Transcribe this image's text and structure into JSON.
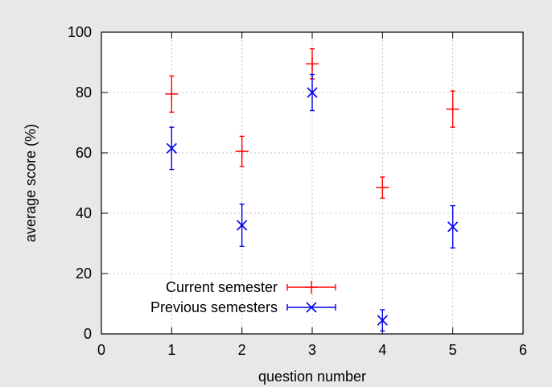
{
  "chart_data": {
    "type": "scatter",
    "xlabel": "question number",
    "ylabel": "average score (%)",
    "xlim": [
      0,
      6
    ],
    "ylim": [
      0,
      100
    ],
    "xticks": [
      0,
      1,
      2,
      3,
      4,
      5,
      6
    ],
    "yticks": [
      0,
      20,
      40,
      60,
      80,
      100
    ],
    "grid": true,
    "legend_position": "bottom-left",
    "series": [
      {
        "name": "Current semester",
        "marker": "plus",
        "color": "#ff0000",
        "x": [
          1,
          2,
          3,
          4,
          5
        ],
        "y": [
          79.5,
          60.5,
          89.5,
          48.5,
          74.5
        ],
        "err": [
          6,
          5,
          5,
          3.5,
          6
        ]
      },
      {
        "name": "Previous semesters",
        "marker": "cross",
        "color": "#0000ee",
        "x": [
          1,
          2,
          3,
          4,
          5
        ],
        "y": [
          61.5,
          36,
          80,
          4.5,
          35.5
        ],
        "err": [
          7,
          7,
          6,
          3.5,
          7
        ]
      }
    ]
  }
}
